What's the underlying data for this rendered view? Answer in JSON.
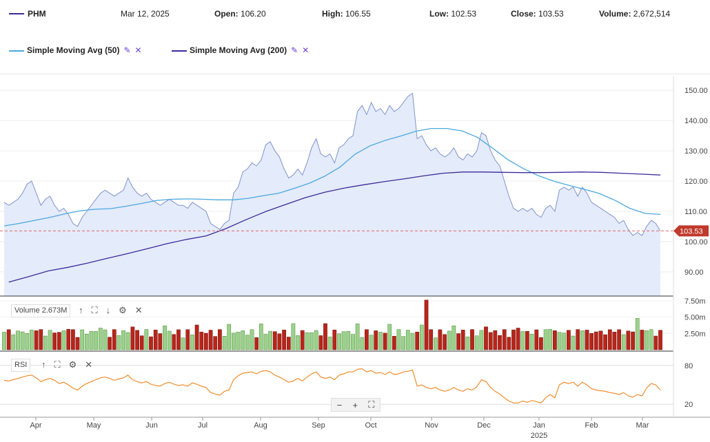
{
  "header": {
    "symbol": "PHM",
    "date": "Mar 12, 2025",
    "open_label": "Open:",
    "open": "106.20",
    "high_label": "High:",
    "high": "106.55",
    "low_label": "Low:",
    "low": "102.53",
    "close_label": "Close:",
    "close": "103.53",
    "volume_label": "Volume:",
    "volume": "2,672,514"
  },
  "indicators": [
    {
      "label": "Simple Moving Avg (50)",
      "color": "#4aa8e0",
      "edit_icon": "pencil-icon",
      "remove_icon": "close-icon"
    },
    {
      "label": "Simple Moving Avg (200)",
      "color": "#3b2a9b",
      "edit_icon": "pencil-icon",
      "remove_icon": "close-icon"
    }
  ],
  "panes": {
    "volume": {
      "label": "Volume 2.673M",
      "tools": [
        "arrow-up-icon",
        "expand-icon",
        "arrow-down-icon",
        "gear-icon",
        "close-icon"
      ]
    },
    "rsi": {
      "label": "RSI",
      "tools": [
        "arrow-up-icon",
        "expand-icon",
        "gear-icon",
        "close-icon"
      ]
    }
  },
  "zoom": {
    "minus": "−",
    "plus": "+",
    "fit": "⛶"
  },
  "chart_data": {
    "type": "area",
    "price": {
      "ylim": [
        82,
        153
      ],
      "yticks": [
        "150.00",
        "140.00",
        "130.00",
        "120.00",
        "110.00",
        "100.00",
        "90.00"
      ],
      "ytick_values": [
        150,
        140,
        130,
        120,
        110,
        100,
        90
      ],
      "last_price_label": "103.53",
      "last_price": 103.53,
      "close_series": [
        113,
        112,
        113,
        114,
        116,
        119,
        120,
        116,
        112,
        114,
        115,
        112,
        110,
        111,
        109,
        106,
        105,
        108,
        110,
        112,
        114,
        116,
        117,
        116,
        115,
        116,
        117,
        121,
        118,
        116,
        115,
        116,
        114,
        113,
        112,
        113,
        114,
        113,
        112,
        112,
        111,
        113,
        112,
        111,
        110,
        106,
        105,
        104,
        106,
        107,
        116,
        118,
        123,
        124,
        126,
        125,
        127,
        132,
        133,
        130,
        128,
        124,
        121,
        122,
        124,
        122,
        126,
        131,
        134,
        129,
        128,
        129,
        126,
        131,
        132,
        134,
        135,
        143,
        145,
        142,
        146,
        143,
        144,
        142,
        145,
        143,
        144,
        146,
        148,
        149,
        134,
        135,
        132,
        130,
        131,
        129,
        128,
        129,
        131,
        128,
        127,
        129,
        128,
        130,
        136,
        135,
        130,
        127,
        125,
        120,
        115,
        111,
        110,
        111,
        110,
        111,
        109,
        108,
        111,
        112,
        110,
        117,
        118,
        117,
        118,
        115,
        118,
        116,
        113,
        112,
        111,
        110,
        109,
        108,
        106,
        107,
        104,
        102,
        103,
        102,
        105,
        107,
        106,
        103.5
      ],
      "sma50_series": [
        105.2,
        106,
        107,
        108,
        109.2,
        110.2,
        110.7,
        110.9,
        111.7,
        112.6,
        113.6,
        114,
        114.1,
        114,
        113.8,
        113.8,
        114.3,
        115.2,
        116,
        117.6,
        119.3,
        121.6,
        124.6,
        128.9,
        131.7,
        133.5,
        134.9,
        136.5,
        137.4,
        137.4,
        136.6,
        134.5,
        130.9,
        127.1,
        124.2,
        121.8,
        120,
        118.6,
        117.3,
        115.9,
        113.7,
        111,
        109.3,
        109
      ],
      "sma200_series": [
        86.6,
        88.4,
        90.3,
        91.5,
        92.9,
        94.5,
        96,
        97.6,
        99.3,
        100.7,
        101.9,
        104.3,
        107.2,
        109.9,
        112.2,
        114.5,
        116.3,
        117.7,
        118.8,
        119.8,
        120.7,
        121.7,
        122.6,
        123,
        123,
        122.9,
        122.8,
        122.8,
        122.9,
        123,
        122.9,
        122.6,
        122.3,
        122
      ]
    },
    "volume": {
      "yticks": [
        "7.50m",
        "5.00m",
        "2.50m"
      ],
      "ytick_values": [
        7.5,
        5.0,
        2.5
      ],
      "ylim": [
        0,
        8
      ]
    },
    "rsi": {
      "yticks": [
        "80",
        "20"
      ],
      "ytick_values": [
        80,
        20
      ],
      "ylim": [
        0,
        100
      ],
      "series": [
        57,
        56,
        58,
        60,
        62,
        64,
        65,
        61,
        55,
        58,
        60,
        57,
        52,
        54,
        50,
        45,
        42,
        48,
        52,
        55,
        58,
        61,
        62,
        60,
        57,
        59,
        61,
        65,
        58,
        55,
        53,
        55,
        51,
        49,
        48,
        52,
        54,
        51,
        49,
        50,
        48,
        53,
        51,
        48,
        46,
        38,
        36,
        34,
        40,
        42,
        58,
        64,
        68,
        69,
        70,
        67,
        71,
        72,
        70,
        65,
        62,
        58,
        54,
        56,
        60,
        56,
        62,
        67,
        70,
        62,
        60,
        62,
        58,
        65,
        67,
        70,
        70,
        74,
        75,
        70,
        72,
        68,
        69,
        66,
        70,
        66,
        67,
        70,
        71,
        73,
        48,
        50,
        46,
        44,
        46,
        42,
        40,
        42,
        46,
        42,
        40,
        44,
        42,
        47,
        58,
        55,
        46,
        40,
        36,
        30,
        25,
        22,
        22,
        25,
        23,
        26,
        24,
        22,
        30,
        35,
        30,
        50,
        54,
        52,
        54,
        48,
        54,
        50,
        44,
        42,
        41,
        40,
        38,
        37,
        35,
        38,
        33,
        31,
        35,
        33,
        45,
        52,
        50,
        42
      ]
    },
    "x_tick_labels": [
      "Apr",
      "May",
      "Jun",
      "Jul",
      "Aug",
      "Sep",
      "Oct",
      "Nov",
      "Dec",
      "Jan",
      "Feb",
      "Mar"
    ],
    "x_tick_year_label": "2025",
    "x_tick_year_under": "Jan"
  }
}
